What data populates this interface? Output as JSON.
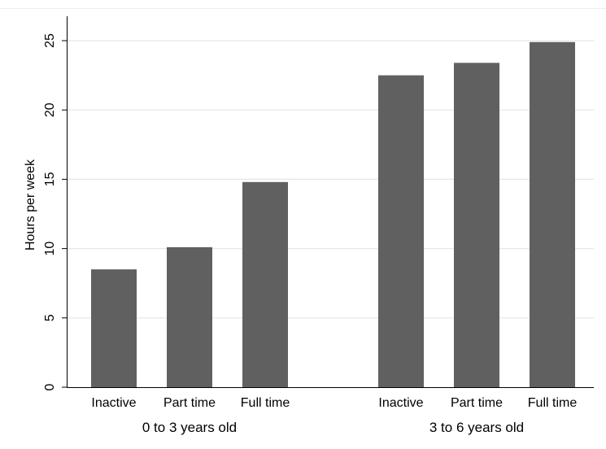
{
  "chart_data": {
    "type": "bar",
    "groups": [
      {
        "label": "0 to 3 years old",
        "categories": [
          "Inactive",
          "Part time",
          "Full time"
        ],
        "values": [
          8.5,
          10.1,
          14.8
        ]
      },
      {
        "label": "3 to 6 years old",
        "categories": [
          "Inactive",
          "Part time",
          "Full time"
        ],
        "values": [
          22.5,
          23.4,
          24.9
        ]
      }
    ],
    "ylabel": "Hours per week",
    "ylim": [
      0,
      26
    ],
    "yticks": [
      "0",
      "5",
      "10",
      "15",
      "20",
      "25"
    ],
    "grid": true,
    "bar_color": "#606060",
    "grid_color": "#e6e6e6"
  }
}
